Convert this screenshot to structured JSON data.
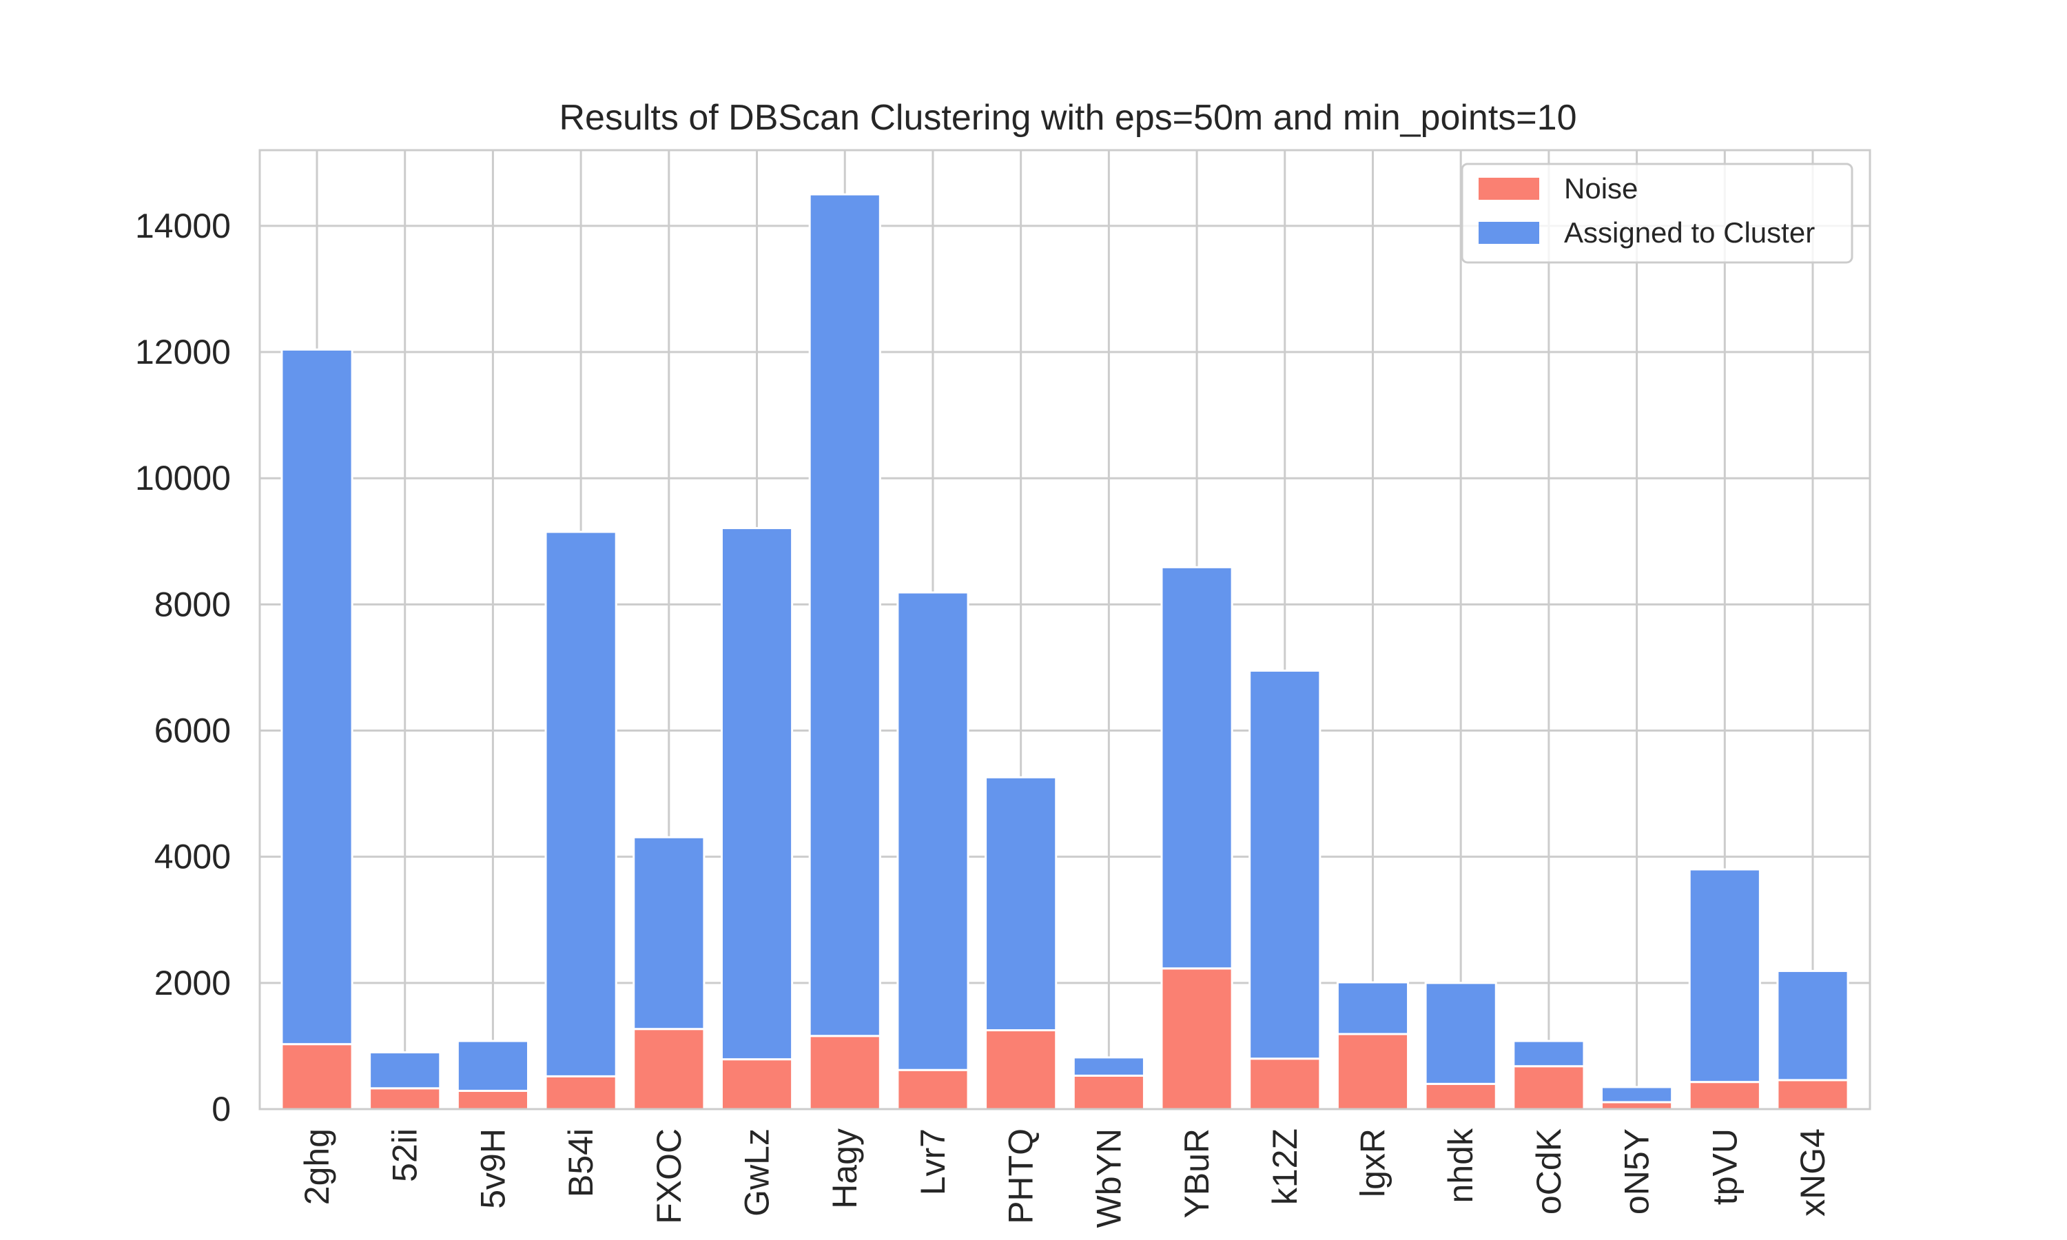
{
  "chart_data": {
    "type": "bar",
    "stacked": true,
    "title": "Results of DBScan Clustering with eps=50m and min_points=10",
    "xlabel": "",
    "ylabel": "",
    "categories": [
      "2ghg",
      "52ii",
      "5v9H",
      "B54i",
      "FXOC",
      "GwLz",
      "Hagy",
      "Lvr7",
      "PHTQ",
      "WbYN",
      "YBuR",
      "k12Z",
      "lgxR",
      "nhdk",
      "oCdK",
      "oN5Y",
      "tpVU",
      "xNG4"
    ],
    "series": [
      {
        "name": "Noise",
        "color": "#fa8072",
        "values": [
          1030,
          330,
          290,
          520,
          1270,
          790,
          1160,
          620,
          1250,
          530,
          2230,
          800,
          1190,
          400,
          680,
          110,
          430,
          460
        ]
      },
      {
        "name": "Assigned to Cluster",
        "color": "#6495ed",
        "values": [
          11010,
          570,
          790,
          8630,
          3040,
          8420,
          13340,
          7570,
          4010,
          290,
          6360,
          6150,
          820,
          1600,
          400,
          240,
          3370,
          1730
        ]
      }
    ],
    "ylim": [
      0,
      15200
    ],
    "yticks": [
      0,
      2000,
      4000,
      6000,
      8000,
      10000,
      12000,
      14000
    ],
    "grid": true,
    "legend_position": "top-right"
  }
}
